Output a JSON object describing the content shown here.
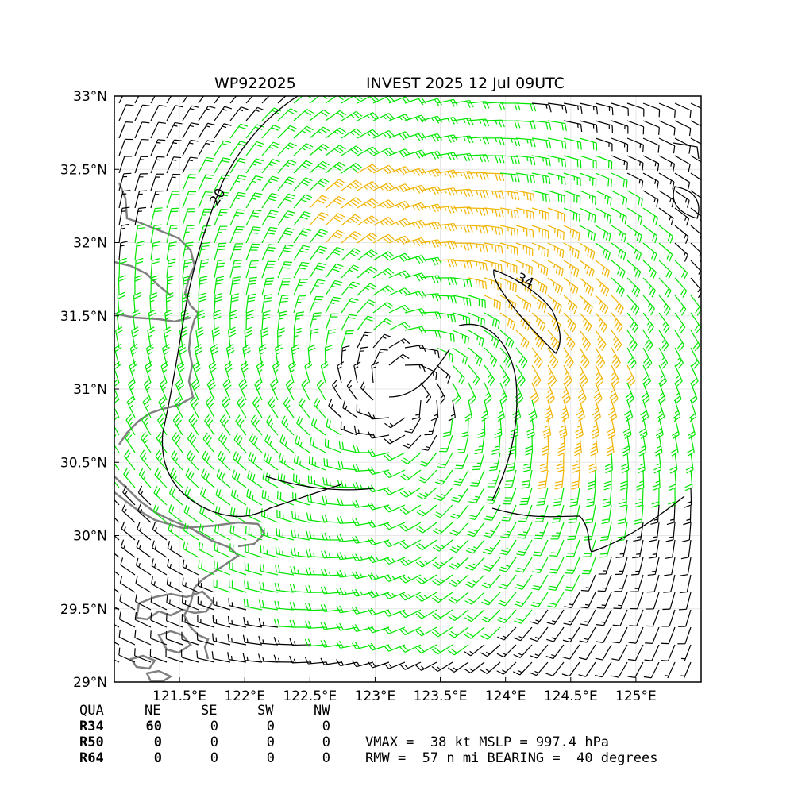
{
  "header": {
    "storm_id": "WP922025",
    "title": "INVEST 2025 12 Jul 09UTC"
  },
  "map": {
    "lon_range": [
      121.0,
      125.5
    ],
    "lat_range": [
      29.0,
      33.0
    ],
    "x_ticks": [
      "121.5°E",
      "122°E",
      "122.5°E",
      "123°E",
      "123.5°E",
      "124°E",
      "124.5°E",
      "125°E"
    ],
    "x_tick_values": [
      121.5,
      122.0,
      122.5,
      123.0,
      123.5,
      124.0,
      124.5,
      125.0
    ],
    "y_ticks": [
      "29°N",
      "29.5°N",
      "30°N",
      "30.5°N",
      "31°N",
      "31.5°N",
      "32°N",
      "32.5°N",
      "33°N"
    ],
    "y_tick_values": [
      29.0,
      29.5,
      30.0,
      30.5,
      31.0,
      31.5,
      32.0,
      32.5,
      33.0
    ],
    "contour_labels": [
      "20",
      "34"
    ],
    "grid": true,
    "colors": {
      "below_20kt": "#000000",
      "20_to_34kt": "#00e600",
      "34kt_plus": "#f0b400",
      "coastline": "#808080"
    }
  },
  "wind_radii": {
    "columns": [
      "QUA",
      "NE",
      "SE",
      "SW",
      "NW"
    ],
    "rows": [
      {
        "label": "R34",
        "values": [
          "60",
          "0",
          "0",
          "0"
        ]
      },
      {
        "label": "R50",
        "values": [
          "0",
          "0",
          "0",
          "0"
        ]
      },
      {
        "label": "R64",
        "values": [
          "0",
          "0",
          "0",
          "0"
        ]
      }
    ]
  },
  "stats": {
    "line1": "VMAX =  38 kt MSLP = 997.4 hPa",
    "line2": "RMW =  57 n mi BEARING =  40 degrees"
  }
}
